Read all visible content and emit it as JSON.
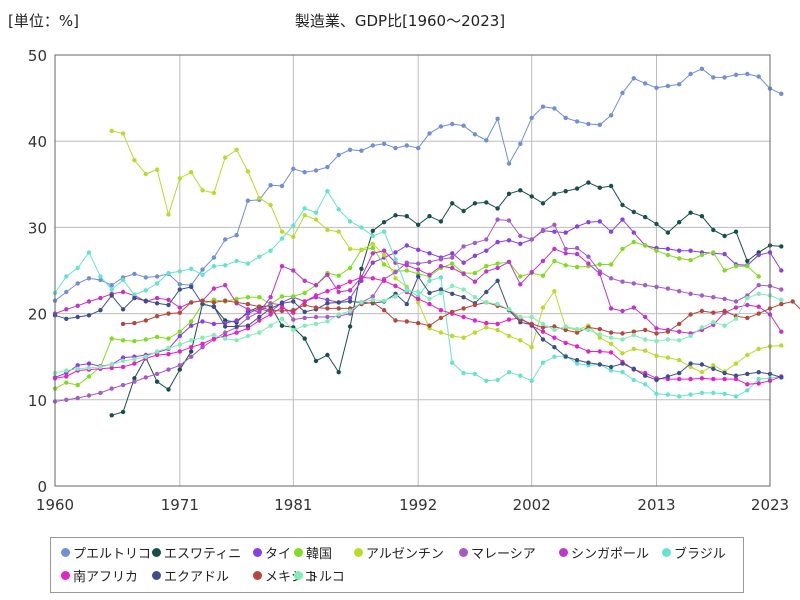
{
  "chart_data": {
    "type": "line",
    "title": "製造業、GDP比[1960〜2023]",
    "unit_label": "[単位：%]",
    "xlabel": "",
    "ylabel": "",
    "xlim": [
      1960,
      2023
    ],
    "ylim": [
      0,
      50
    ],
    "x_ticks": [
      1960,
      1971,
      1981,
      1992,
      2002,
      2013,
      2023
    ],
    "y_ticks": [
      0,
      10,
      20,
      30,
      40,
      50
    ],
    "grid": true,
    "legend_position": "bottom",
    "series": [
      {
        "name": "プエルトリコ",
        "color": "#6f8fd6",
        "start": 1960,
        "values": [
          21.5,
          22.5,
          23.5,
          24.1,
          23.9,
          23.3,
          24.2,
          24.6,
          24.2,
          24.3,
          24.6,
          23.4,
          23.3,
          25.1,
          26.5,
          28.6,
          29.1,
          33.1,
          33.2,
          34.9,
          34.8,
          36.8,
          36.4,
          36.6,
          37.0,
          38.4,
          39.0,
          38.9,
          39.5,
          39.7,
          39.2,
          39.5,
          39.2,
          40.9,
          41.7,
          42.0,
          41.8,
          40.8,
          40.1,
          42.6,
          37.4,
          39.7,
          42.7,
          44.0,
          43.8,
          42.7,
          42.3,
          42.0,
          41.9,
          43.0,
          45.6,
          47.3,
          46.7,
          46.2,
          46.4,
          46.6,
          47.8,
          48.4,
          47.4,
          47.4,
          47.7,
          47.8,
          47.5,
          46.1,
          45.5
        ]
      },
      {
        "name": "エスワティニ",
        "color": "#16504a",
        "start": 1965,
        "values": [
          8.2,
          8.6,
          12.5,
          14.9,
          12.1,
          11.2,
          13.5,
          15.6,
          21.1,
          20.8,
          19.2,
          19.0,
          20.2,
          20.8,
          20.9,
          18.6,
          18.4,
          17.1,
          14.5,
          15.2,
          13.2,
          18.5,
          25.2,
          29.6,
          30.6,
          31.4,
          31.3,
          30.3,
          31.3,
          30.7,
          32.8,
          31.9,
          32.8,
          32.9,
          32.2,
          33.9,
          34.3,
          33.6,
          32.8,
          33.9,
          34.2,
          34.5,
          35.2,
          34.6,
          34.8,
          32.6,
          31.8,
          31.2,
          30.4,
          29.4,
          30.6,
          31.7,
          31.3,
          29.7,
          29.0,
          29.5,
          26.1,
          27.1,
          27.9,
          27.8
        ]
      },
      {
        "name": "タイ",
        "color": "#8a3fe6",
        "start": 1960,
        "values": [
          12.6,
          13.1,
          14.0,
          14.2,
          13.9,
          14.1,
          14.9,
          15.0,
          15.2,
          15.5,
          15.9,
          17.4,
          18.6,
          19.1,
          18.8,
          18.9,
          19.2,
          20.0,
          20.6,
          20.2,
          21.3,
          21.9,
          21.4,
          21.9,
          21.6,
          21.3,
          21.8,
          23.8,
          25.9,
          26.5,
          27.1,
          27.9,
          27.4,
          27.0,
          26.5,
          27.0,
          25.9,
          26.7,
          27.3,
          28.3,
          28.5,
          28.1,
          28.6,
          29.6,
          29.5,
          29.4,
          30.1,
          30.6,
          30.7,
          29.5,
          30.9,
          29.4,
          27.9,
          27.6,
          27.5,
          27.3,
          27.3,
          27.1,
          27.0,
          26.9,
          25.7,
          25.6,
          26.8,
          27.1,
          25.0
        ]
      },
      {
        "name": "韓国",
        "color": "#80dc1e",
        "start": 1960,
        "values": [
          11.3,
          12.0,
          11.7,
          12.7,
          13.8,
          17.1,
          16.9,
          16.8,
          17.0,
          17.3,
          17.1,
          17.9,
          19.1,
          21.1,
          21.6,
          21.4,
          21.7,
          21.9,
          21.9,
          21.1,
          22.0,
          22.0,
          22.4,
          23.3,
          24.7,
          24.4,
          25.3,
          27.4,
          27.6,
          25.7,
          24.9,
          25.0,
          24.6,
          24.3,
          25.3,
          25.8,
          24.7,
          24.7,
          25.5,
          25.8,
          26.0,
          24.3,
          24.7,
          24.4,
          26.1,
          25.6,
          25.4,
          25.5,
          25.7,
          25.7,
          27.5,
          28.3,
          27.9,
          27.3,
          26.8,
          26.4,
          26.2,
          26.8,
          27.1,
          25.0,
          25.5,
          25.5,
          24.3
        ]
      },
      {
        "name": "アルゼンチン",
        "color": "#b8dc28",
        "start": 1965,
        "values": [
          41.2,
          40.9,
          37.8,
          36.2,
          36.7,
          31.5,
          35.7,
          36.4,
          34.3,
          34.0,
          38.1,
          39.0,
          36.5,
          33.4,
          32.6,
          29.5,
          28.9,
          31.4,
          30.9,
          29.7,
          29.5,
          27.5,
          27.4,
          28.1,
          26.8,
          24.1,
          23.1,
          21.3,
          18.3,
          17.8,
          17.4,
          17.2,
          17.8,
          18.4,
          18.1,
          17.4,
          16.9,
          16.1,
          20.7,
          22.6,
          18.4,
          18.1,
          18.6,
          17.2,
          16.5,
          15.4,
          15.9,
          15.7,
          15.1,
          14.9,
          14.6,
          13.8,
          13.2,
          14.0,
          13.3,
          14.2,
          15.2,
          15.9,
          16.2,
          16.3
        ]
      },
      {
        "name": "マレーシア",
        "color": "#a35cc6",
        "start": 1960,
        "values": [
          9.8,
          10.0,
          10.2,
          10.5,
          10.8,
          11.3,
          11.7,
          12.1,
          12.6,
          13.0,
          13.5,
          14.0,
          15.0,
          16.1,
          17.0,
          17.8,
          18.4,
          19.5,
          20.2,
          21.2,
          21.0,
          19.3,
          19.5,
          19.6,
          19.6,
          19.7,
          20.0,
          21.3,
          22.0,
          24.0,
          24.8,
          25.9,
          25.8,
          26.0,
          26.3,
          26.5,
          27.8,
          28.2,
          28.6,
          30.9,
          30.8,
          29.0,
          28.6,
          29.7,
          30.3,
          27.5,
          27.6,
          26.6,
          24.9,
          24.1,
          23.7,
          23.5,
          23.3,
          23.1,
          22.9,
          22.6,
          22.3,
          22.1,
          21.9,
          21.7,
          21.4,
          22.1,
          23.3,
          23.2,
          22.8
        ]
      },
      {
        "name": "シンガポール",
        "color": "#c036c8",
        "start": 1960,
        "values": [
          20.0,
          20.5,
          20.9,
          21.4,
          21.8,
          22.3,
          22.5,
          22.1,
          21.4,
          21.8,
          21.6,
          20.7,
          21.3,
          21.5,
          22.9,
          23.3,
          21.2,
          20.5,
          20.2,
          21.9,
          25.5,
          25.0,
          23.8,
          23.3,
          24.5,
          22.5,
          22.7,
          24.2,
          27.0,
          27.3,
          25.9,
          25.6,
          25.1,
          24.5,
          25.5,
          25.3,
          24.6,
          23.7,
          24.9,
          25.3,
          26.0,
          23.4,
          24.8,
          26.1,
          27.5,
          27.0,
          26.9,
          25.8,
          24.6,
          20.6,
          20.3,
          20.7,
          19.6,
          18.3,
          18.1,
          17.9,
          17.7,
          18.1,
          18.7,
          20.1,
          20.7,
          21.0,
          20.8,
          19.9,
          17.9
        ]
      },
      {
        "name": "ブラジル",
        "color": "#66e3cd",
        "start": 1960,
        "values": [
          22.4,
          24.3,
          25.3,
          27.1,
          24.3,
          22.8,
          23.9,
          22.2,
          22.7,
          23.5,
          24.7,
          24.9,
          25.2,
          24.5,
          25.5,
          25.6,
          26.1,
          25.8,
          26.6,
          27.3,
          28.7,
          30.2,
          32.2,
          31.7,
          34.2,
          32.1,
          30.7,
          30.0,
          29.0,
          29.5,
          26.3,
          22.9,
          22.0,
          23.8,
          24.2,
          14.3,
          13.1,
          13.0,
          12.2,
          12.3,
          13.2,
          12.8,
          12.2,
          14.3,
          15.0,
          15.1,
          14.2,
          14.0,
          14.1,
          13.4,
          13.2,
          12.3,
          11.8,
          10.7,
          10.6,
          10.4,
          10.6,
          10.8,
          10.8,
          10.7,
          10.4,
          11.1,
          12.4,
          12.5,
          12.7
        ]
      },
      {
        "name": "南アフリカ",
        "color": "#e621c8",
        "start": 1960,
        "values": [
          12.5,
          12.7,
          13.4,
          13.5,
          13.6,
          13.7,
          13.8,
          14.2,
          14.8,
          15.2,
          15.3,
          15.6,
          16.1,
          16.5,
          17.1,
          17.4,
          17.8,
          18.3,
          19.2,
          19.9,
          20.7,
          20.1,
          21.4,
          22.1,
          22.6,
          23.1,
          23.7,
          24.2,
          24.1,
          23.8,
          23.2,
          22.5,
          21.7,
          21.1,
          20.4,
          20.0,
          19.6,
          19.2,
          18.9,
          18.8,
          19.3,
          19.5,
          18.6,
          17.9,
          17.2,
          16.6,
          16.2,
          15.6,
          15.6,
          15.5,
          14.4,
          13.5,
          13.1,
          12.5,
          12.4,
          12.4,
          12.4,
          12.5,
          12.4,
          12.4,
          12.4,
          11.8,
          11.9,
          12.2,
          12.7
        ]
      },
      {
        "name": "エクアドル",
        "color": "#3c4f8c",
        "start": 1960,
        "values": [
          19.8,
          19.4,
          19.6,
          19.8,
          20.4,
          22.1,
          20.5,
          21.8,
          21.5,
          21.2,
          21.0,
          22.8,
          23.1,
          21.1,
          20.8,
          18.5,
          18.5,
          18.6,
          19.6,
          20.6,
          21.2,
          21.4,
          20.2,
          20.5,
          21.2,
          21.3,
          21.4,
          21.3,
          21.2,
          21.4,
          22.3,
          21.1,
          24.3,
          22.4,
          22.8,
          22.3,
          21.9,
          21.2,
          22.5,
          23.8,
          20.4,
          19.0,
          18.7,
          17.0,
          16.1,
          15.0,
          14.6,
          14.3,
          14.1,
          13.8,
          14.2,
          13.6,
          12.8,
          12.3,
          12.7,
          13.1,
          14.2,
          14.1,
          13.6,
          13.1,
          12.8,
          13.0,
          13.2,
          13.0,
          12.6
        ]
      },
      {
        "name": "メキシコ",
        "color": "#b5473f",
        "start": 1966,
        "values": [
          18.8,
          18.9,
          19.2,
          19.7,
          20.0,
          20.1,
          21.3,
          21.5,
          21.3,
          21.5,
          21.3,
          21.1,
          20.8,
          20.4,
          20.3,
          20.4,
          21.0,
          20.7,
          20.6,
          20.6,
          20.6,
          21.1,
          21.3,
          20.4,
          19.2,
          19.1,
          18.9,
          18.6,
          19.5,
          20.2,
          20.6,
          21.0,
          21.3,
          20.9,
          20.5,
          19.3,
          18.8,
          18.4,
          18.5,
          18.1,
          17.8,
          18.4,
          18.2,
          17.8,
          17.7,
          17.9,
          18.1,
          17.7,
          17.9,
          18.8,
          19.9,
          20.3,
          20.1,
          20.3,
          19.7,
          19.5,
          20.0,
          20.6,
          21.1,
          21.4,
          20.1
        ]
      },
      {
        "name": "トルコ",
        "color": "#80eeb6",
        "start": 1960,
        "values": [
          13.1,
          13.4,
          13.6,
          13.7,
          13.8,
          14.1,
          14.5,
          14.7,
          15.0,
          15.6,
          16.0,
          16.4,
          16.9,
          17.2,
          17.5,
          17.1,
          16.9,
          17.4,
          17.8,
          18.6,
          19.4,
          18.1,
          18.6,
          18.8,
          19.1,
          19.9,
          20.3,
          21.3,
          21.6,
          21.5,
          22.0,
          22.7,
          22.5,
          21.7,
          22.4,
          23.2,
          22.8,
          21.9,
          21.3,
          21.1,
          20.5,
          19.6,
          19.6,
          18.8,
          18.1,
          18.5,
          18.2,
          18.1,
          17.6,
          17.2,
          17.0,
          17.5,
          17.0,
          16.8,
          17.0,
          16.9,
          17.4,
          18.4,
          19.0,
          18.6,
          19.4,
          21.8,
          22.3,
          22.1,
          21.6
        ]
      }
    ]
  }
}
